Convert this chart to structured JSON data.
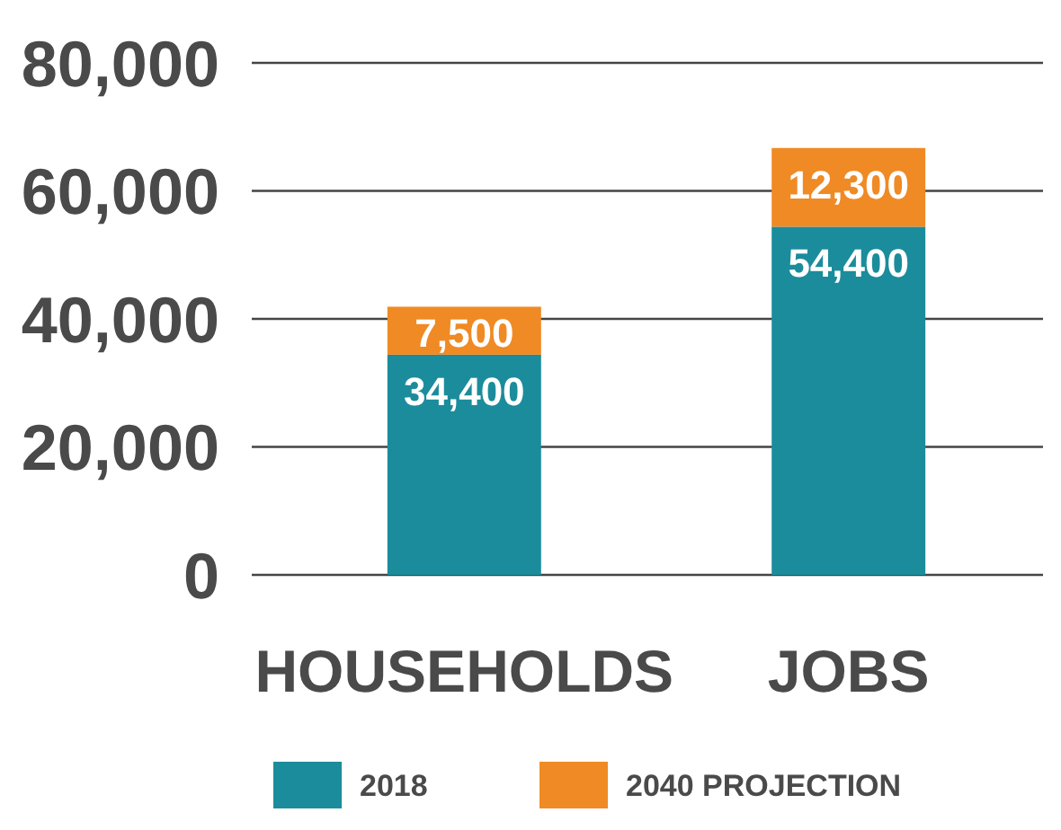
{
  "chart_data": {
    "type": "bar",
    "stacked": true,
    "categories": [
      "HOUSEHOLDS",
      "JOBS"
    ],
    "series": [
      {
        "name": "2018",
        "color": "#1b8c9b",
        "values": [
          34400,
          54400
        ],
        "value_labels": [
          "34,400",
          "54,400"
        ]
      },
      {
        "name": "2040 PROJECTION",
        "color": "#f08a24",
        "values": [
          7500,
          12300
        ],
        "value_labels": [
          "7,500",
          "12,300"
        ]
      }
    ],
    "ylim": [
      0,
      80000
    ],
    "yticks": [
      {
        "value": 0,
        "label": "0"
      },
      {
        "value": 20000,
        "label": "20,000"
      },
      {
        "value": 40000,
        "label": "40,000"
      },
      {
        "value": 60000,
        "label": "60,000"
      },
      {
        "value": 80000,
        "label": "80,000"
      }
    ],
    "grid": "y",
    "legend": "bottom"
  }
}
